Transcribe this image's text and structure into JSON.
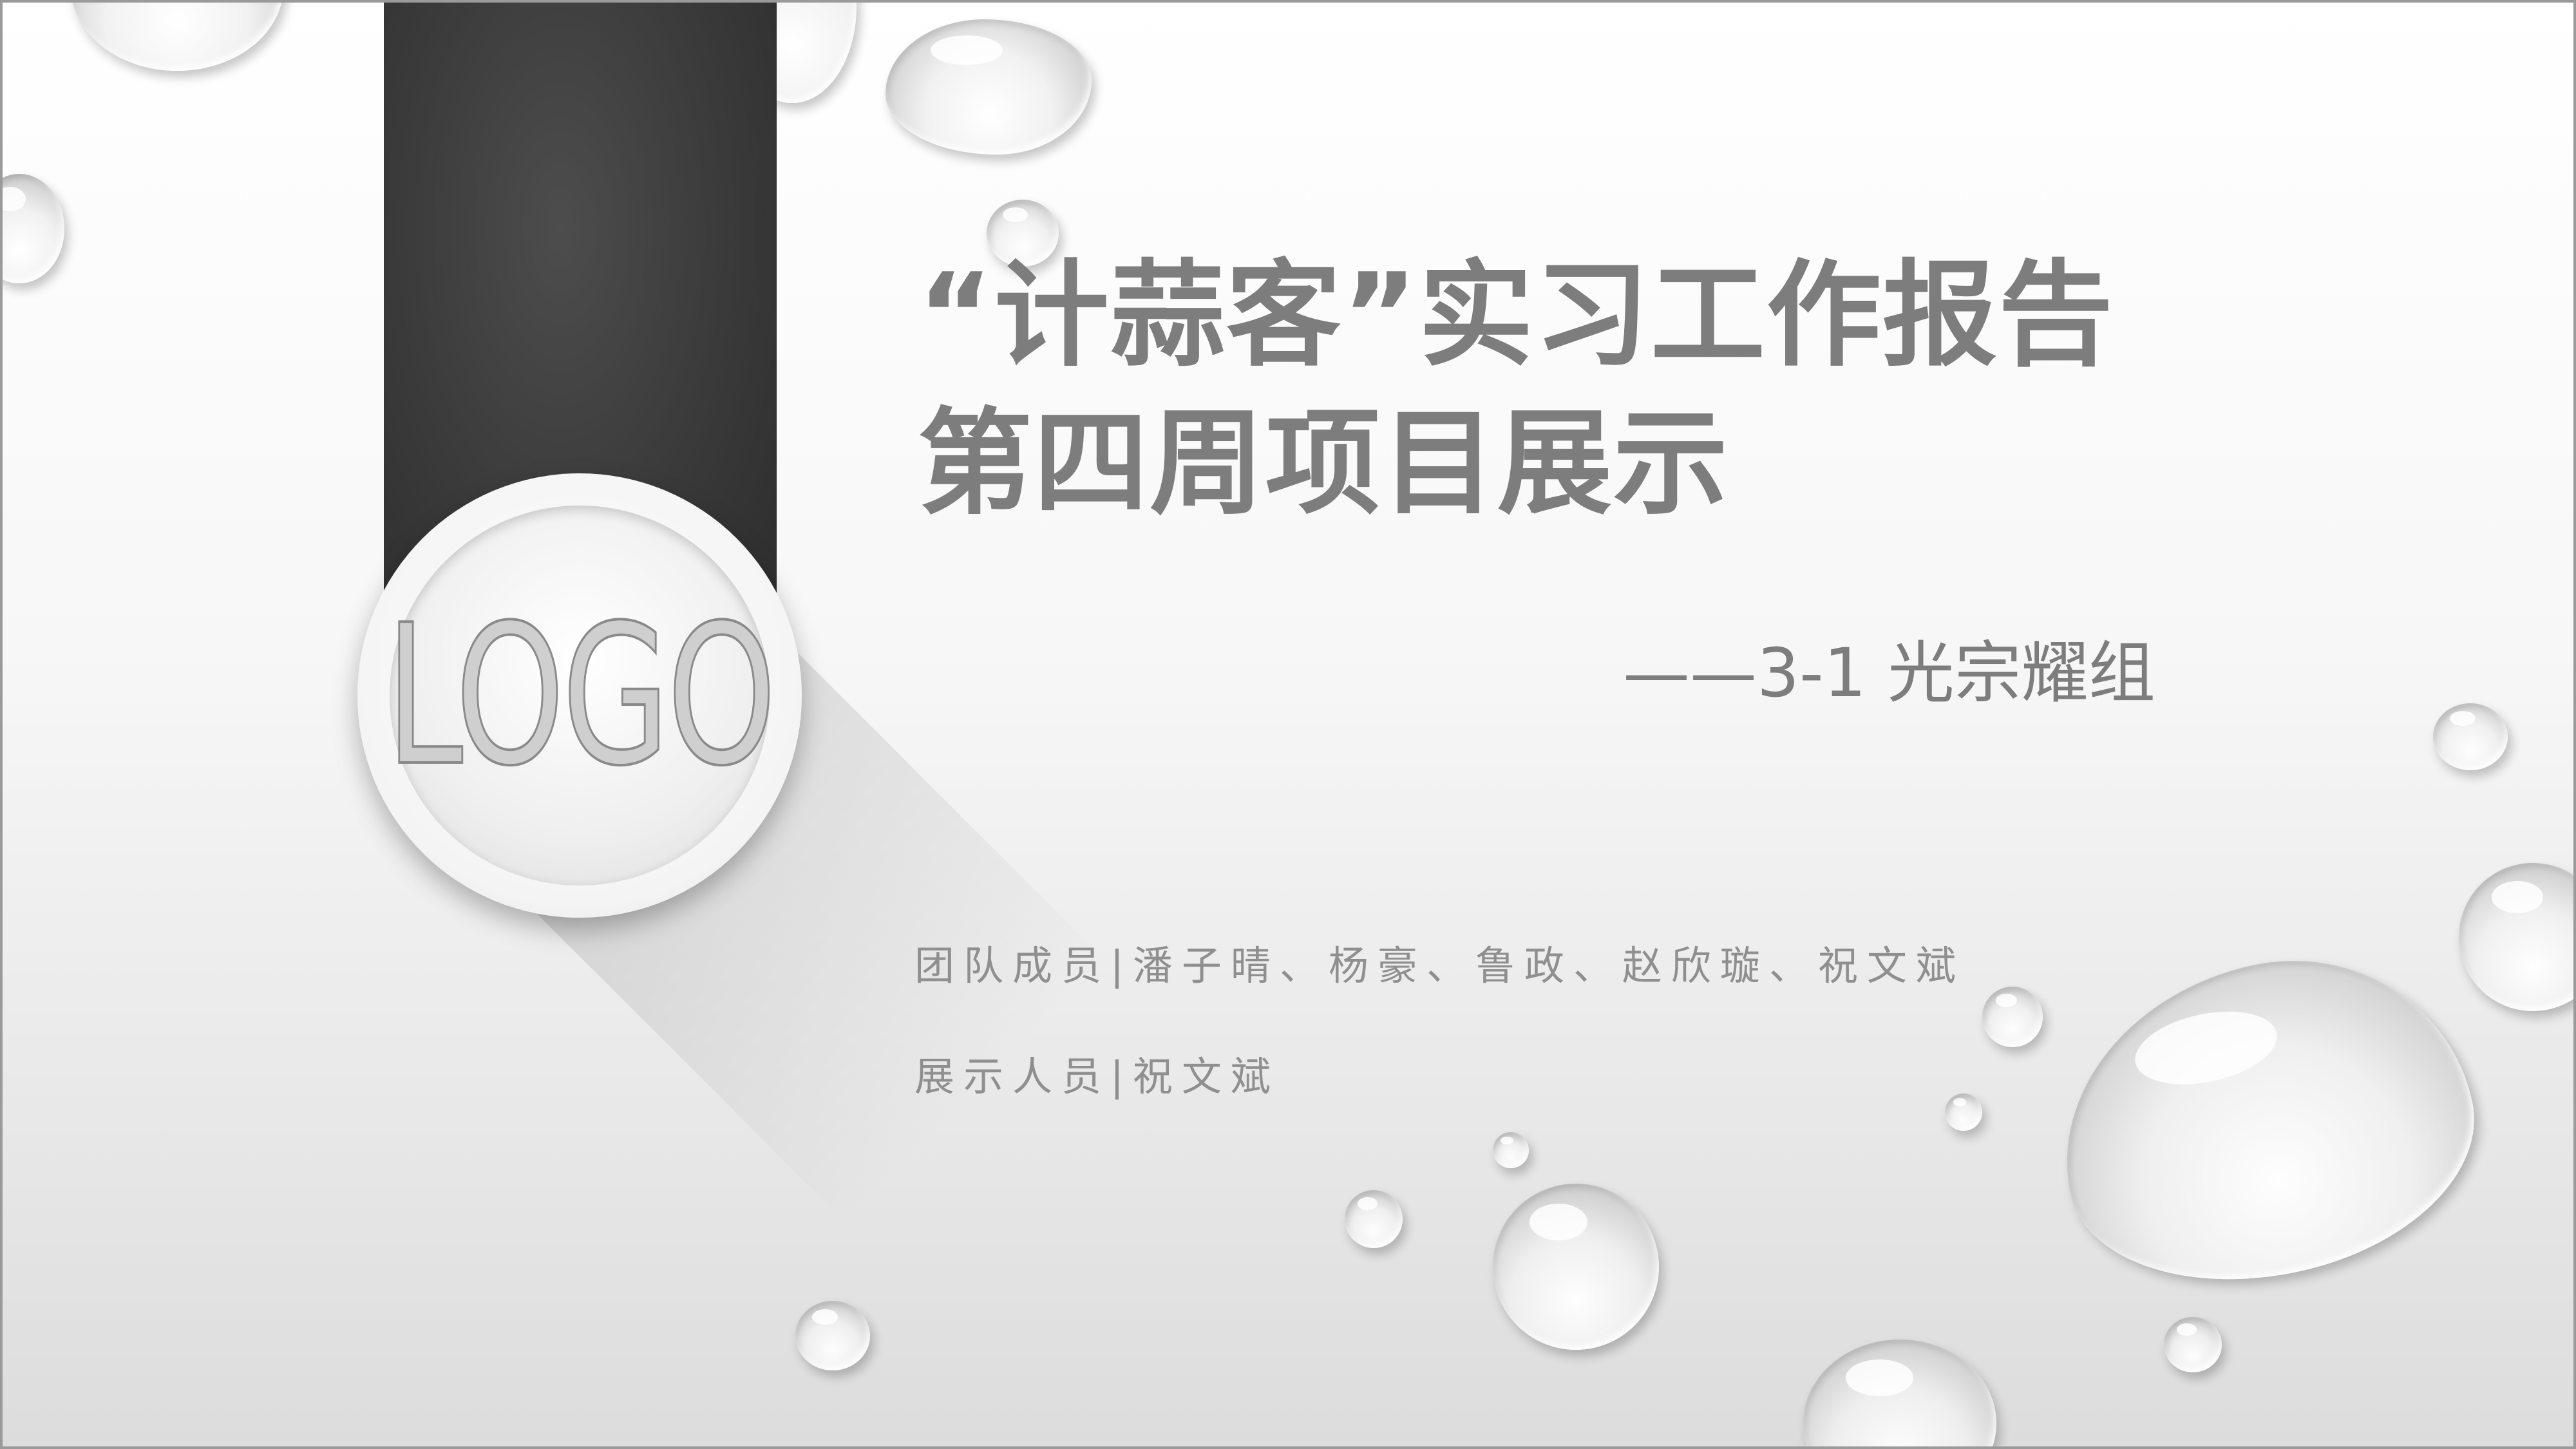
{
  "slide": {
    "title_line1": "“计蒜客”实习工作报告",
    "title_line2": "第四周项目展示",
    "subtitle": "——3-1 光宗耀组",
    "members": "团队成员|潘子晴、杨豪、鲁政、赵欣璇、祝文斌",
    "presenter": "展示人员|祝文斌",
    "logo_text": "LOGO"
  },
  "colors": {
    "ribbon": "#3a3a3a",
    "title": "#7d7d7d",
    "body_text": "#8f8f8f"
  }
}
